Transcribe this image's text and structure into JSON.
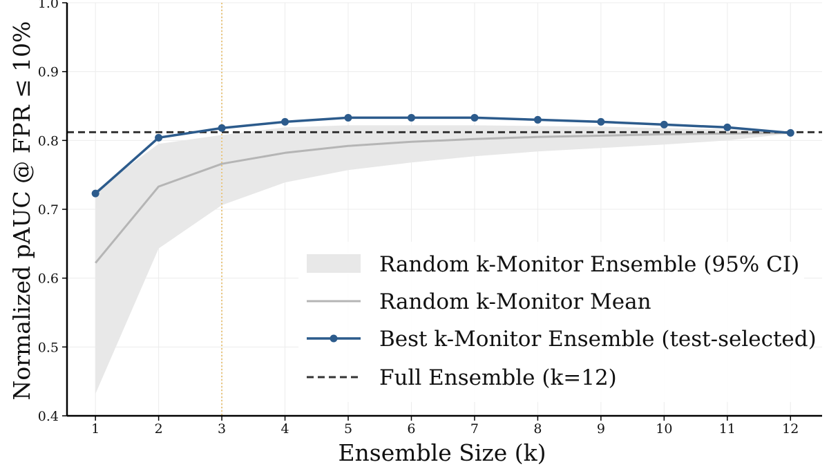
{
  "chart_data": {
    "type": "line",
    "title": "",
    "xlabel": "Ensemble Size (k)",
    "ylabel": "Normalized pAUC @ FPR ≤ 10%",
    "xlim": [
      0.55,
      12.5
    ],
    "ylim": [
      0.4,
      1.0
    ],
    "x": [
      1,
      2,
      3,
      4,
      5,
      6,
      7,
      8,
      9,
      10,
      11,
      12
    ],
    "xticks": [
      "1",
      "2",
      "3",
      "4",
      "5",
      "6",
      "7",
      "8",
      "9",
      "10",
      "11",
      "12"
    ],
    "yticks": [
      "0.4",
      "0.5",
      "0.6",
      "0.7",
      "0.8",
      "0.9",
      "1.0"
    ],
    "grid": true,
    "legend_position": "lower-right",
    "vertical_marker": {
      "x": 3,
      "color": "#e8c47c",
      "style": "dotted"
    },
    "band": {
      "name": "Random k-Monitor Ensemble (95% CI)",
      "lower": [
        0.432,
        0.643,
        0.706,
        0.739,
        0.757,
        0.768,
        0.777,
        0.784,
        0.789,
        0.794,
        0.8,
        0.81
      ],
      "upper": [
        0.727,
        0.795,
        0.808,
        0.819,
        0.822,
        0.822,
        0.822,
        0.821,
        0.82,
        0.818,
        0.816,
        0.812
      ],
      "color": "#e8e8e8"
    },
    "series": [
      {
        "name": "Random k-Monitor Mean",
        "values": [
          0.622,
          0.733,
          0.766,
          0.782,
          0.792,
          0.798,
          0.802,
          0.805,
          0.807,
          0.809,
          0.81,
          0.811
        ],
        "color": "#b5b5b5",
        "style": "solid"
      },
      {
        "name": "Best k-Monitor Ensemble (test-selected)",
        "values": [
          0.723,
          0.804,
          0.818,
          0.827,
          0.833,
          0.833,
          0.833,
          0.83,
          0.827,
          0.823,
          0.819,
          0.811
        ],
        "color": "#2c5b8c",
        "style": "solid-markers"
      },
      {
        "name": "Full Ensemble (k=12)",
        "constant": 0.812,
        "color": "#333333",
        "style": "dashed"
      }
    ]
  }
}
